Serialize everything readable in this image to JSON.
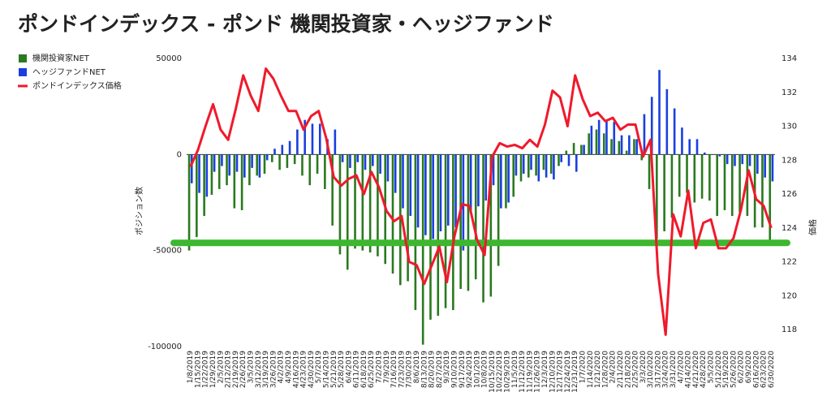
{
  "chart_data": {
    "type": "bar_line",
    "title": "ポンドインデックス - ポンド 機関投資家・ヘッジファンド",
    "y_label": "ポジション数",
    "y2_label": "価格",
    "categories": [
      "1/8/2019",
      "1/15/2019",
      "1/22/2019",
      "1/29/2019",
      "2/5/2019",
      "2/12/2019",
      "2/19/2019",
      "2/26/2019",
      "3/5/2019",
      "3/12/2019",
      "3/19/2019",
      "3/26/2019",
      "4/2/2019",
      "4/9/2019",
      "4/16/2019",
      "4/23/2019",
      "4/30/2019",
      "5/7/2019",
      "5/14/2019",
      "5/21/2019",
      "5/28/2019",
      "6/4/2019",
      "6/11/2019",
      "6/18/2019",
      "6/25/2019",
      "7/2/2019",
      "7/9/2019",
      "7/16/2019",
      "7/23/2019",
      "7/30/2019",
      "8/6/2019",
      "8/13/2019",
      "8/20/2019",
      "8/27/2019",
      "9/3/2019",
      "9/10/2019",
      "9/17/2019",
      "9/24/2019",
      "10/1/2019",
      "10/8/2019",
      "10/15/2019",
      "10/22/2019",
      "10/29/2019",
      "11/5/2019",
      "11/12/2019",
      "11/19/2019",
      "11/26/2019",
      "12/3/2019",
      "12/10/2019",
      "12/17/2019",
      "12/24/2019",
      "12/31/2019",
      "1/7/2020",
      "1/14/2020",
      "1/21/2020",
      "1/28/2020",
      "2/4/2020",
      "2/11/2020",
      "2/18/2020",
      "2/25/2020",
      "3/3/2020",
      "3/10/2020",
      "3/17/2020",
      "3/24/2020",
      "3/31/2020",
      "4/7/2020",
      "4/14/2020",
      "4/21/2020",
      "4/28/2020",
      "5/5/2020",
      "5/12/2020",
      "5/19/2020",
      "5/26/2020",
      "6/2/2020",
      "6/9/2020",
      "6/16/2020",
      "6/23/2020",
      "6/30/2020"
    ],
    "series": [
      {
        "name": "機関投資家NET",
        "color": "#2a7a1f",
        "kind": "bar",
        "values": [
          -50000,
          -43000,
          -32000,
          -21000,
          -18000,
          -16000,
          -28000,
          -29000,
          -16000,
          -11000,
          -10000,
          -4000,
          -8000,
          -7000,
          -5000,
          -11000,
          -16000,
          -10000,
          -18000,
          -37000,
          -52000,
          -60000,
          -49000,
          -50000,
          -51000,
          -53000,
          -57000,
          -62000,
          -68000,
          -66000,
          -81000,
          -99000,
          -86000,
          -84000,
          -80000,
          -81000,
          -70000,
          -71000,
          -65000,
          -77000,
          -74000,
          -58000,
          -28000,
          -22000,
          -14000,
          -12000,
          -11000,
          -8000,
          -10000,
          -6000,
          2000,
          6000,
          5000,
          11000,
          13000,
          11000,
          8000,
          7000,
          2000,
          8000,
          -3000,
          -18000,
          -44000,
          -40000,
          -33000,
          -22000,
          -20000,
          -25000,
          -23000,
          -24000,
          -32000,
          -29000,
          -32000,
          -30000,
          -32000,
          -38000,
          -38000,
          -47000
        ]
      },
      {
        "name": "ヘッジファンドNET",
        "color": "#1a3fe0",
        "kind": "bar",
        "values": [
          -15000,
          -20000,
          -22000,
          -9000,
          -6000,
          -11000,
          -9000,
          -12000,
          -7000,
          -12000,
          -3000,
          3000,
          5000,
          7000,
          13000,
          18000,
          16000,
          16000,
          8000,
          13000,
          -4000,
          -7000,
          -4000,
          -8000,
          -6000,
          -10000,
          -14000,
          -20000,
          -28000,
          -32000,
          -38000,
          -42000,
          -44000,
          -40000,
          -37000,
          -38000,
          -50000,
          -30000,
          -27000,
          -24000,
          -16000,
          -28000,
          -25000,
          -11000,
          -10000,
          -8000,
          -14000,
          -12000,
          -13000,
          -4000,
          -6000,
          -9000,
          5000,
          15000,
          18000,
          18000,
          17000,
          10000,
          10000,
          8000,
          21000,
          30000,
          44000,
          34000,
          24000,
          14000,
          8000,
          8000,
          1000,
          0,
          -1000,
          -5000,
          -6000,
          -5000,
          -6000,
          -10000,
          -12000,
          -14000
        ]
      },
      {
        "name": "ポンドインデックス価格",
        "color": "#f0192b",
        "kind": "line",
        "axis": "y2",
        "values": [
          127.6,
          128.6,
          130,
          131.3,
          129.8,
          129.2,
          131,
          133,
          131.8,
          130.9,
          133.4,
          132.8,
          131.8,
          130.9,
          130.9,
          129.8,
          130.6,
          130.9,
          129.3,
          127,
          126.5,
          126.9,
          127.1,
          126,
          127.3,
          126.4,
          125,
          124.4,
          124.7,
          122,
          121.8,
          120.7,
          121.8,
          122.9,
          120.8,
          123.5,
          125.4,
          125.3,
          123.3,
          122.4,
          128.2,
          129,
          128.8,
          128.9,
          128.7,
          129.2,
          128.8,
          130.1,
          132.1,
          131.7,
          130,
          133,
          131.6,
          130.6,
          130.8,
          130.3,
          130.5,
          129.8,
          130.1,
          130.1,
          128.2,
          129.2,
          121.3,
          117.7,
          124.8,
          123.5,
          126.2,
          122.8,
          124.3,
          124.5,
          122.8,
          122.8,
          123.4,
          125.1,
          127.4,
          125.7,
          125.3,
          124
        ]
      }
    ],
    "reference_line": {
      "value": -46000,
      "color": "#3cb72f"
    },
    "ylim": [
      -100000,
      50000
    ],
    "yticks": [
      -100000,
      -50000,
      0,
      50000
    ],
    "y2lim": [
      117,
      134
    ],
    "y2ticks": [
      118,
      120,
      122,
      124,
      126,
      128,
      130,
      132,
      134
    ],
    "grid": false,
    "legend": "top-left"
  }
}
